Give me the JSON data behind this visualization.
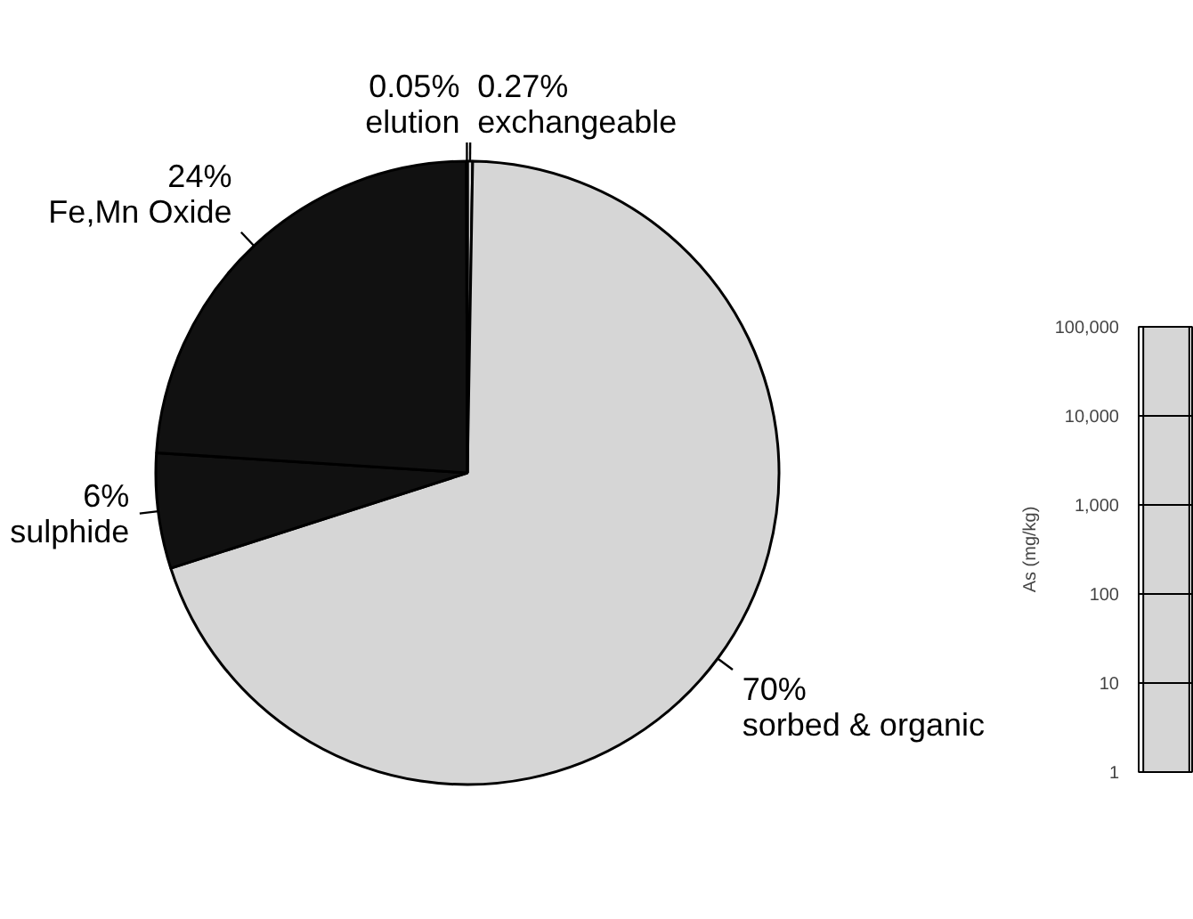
{
  "chart_data": [
    {
      "type": "pie",
      "categories": [
        "exchangeable",
        "sorbed & organic",
        "sulphide",
        "Fe,Mn Oxide",
        "elution"
      ],
      "values": [
        0.27,
        70,
        6,
        24,
        0.05
      ],
      "value_labels": [
        "0.27%",
        "70%",
        "6%",
        "24%",
        "0.05%"
      ],
      "colors": [
        "#d6d6d6",
        "#d6d6d6",
        "#111111",
        "#111111",
        "#111111"
      ]
    },
    {
      "type": "bar",
      "categories": [
        null
      ],
      "values": [
        100000
      ],
      "color": "#d6d6d6",
      "log": true,
      "ylim": [
        1,
        100000
      ],
      "yticks": [
        1,
        10,
        100,
        {
          "value": 1000,
          "label": "1,000"
        },
        {
          "value": 10000,
          "label": "10,000"
        },
        {
          "value": 100000,
          "label": "100,000"
        }
      ],
      "ylabel": "As (mg/kg)",
      "grid": "y",
      "tick_labels": "y"
    }
  ]
}
